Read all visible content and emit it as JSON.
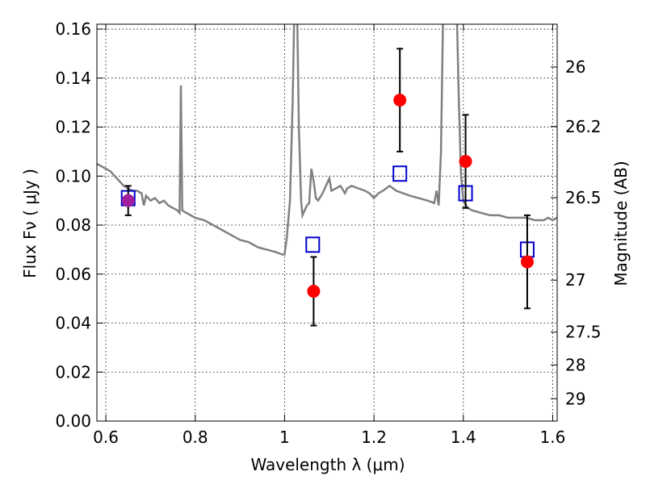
{
  "chart_data": {
    "type": "scatter",
    "xlabel": "Wavelength  λ (μm)",
    "ylabel": "Flux  Fν  ( μJy )",
    "ylabel_right": "Magnitude (AB)",
    "xlim": [
      0.58,
      1.61
    ],
    "ylim": [
      0,
      0.162
    ],
    "grid": true,
    "x_ticks": [
      "0.6",
      "0.8",
      "1",
      "1.2",
      "1.4",
      "1.6"
    ],
    "y_ticks": [
      "0.00",
      "0.02",
      "0.04",
      "0.06",
      "0.08",
      "0.10",
      "0.12",
      "0.14",
      "0.16"
    ],
    "mag_ticks": [
      {
        "label": "26",
        "mag": 26.0
      },
      {
        "label": "26.2",
        "mag": 26.2
      },
      {
        "label": "26.5",
        "mag": 26.5
      },
      {
        "label": "27",
        "mag": 27.0
      },
      {
        "label": "27.5",
        "mag": 27.5
      },
      {
        "label": "28",
        "mag": 28.0
      },
      {
        "label": "29",
        "mag": 29.0
      }
    ],
    "colors": {
      "observed": "#ff0000",
      "model_photometry": "#0000cc",
      "spectrum": "#808080",
      "overlap": "#a020a0"
    },
    "series": [
      {
        "type": "scatter_errorbar",
        "marker": "circle",
        "points": [
          {
            "x": 0.65,
            "y": 0.09,
            "yerr": 0.006
          },
          {
            "x": 1.065,
            "y": 0.053,
            "yerr": 0.014
          },
          {
            "x": 1.258,
            "y": 0.131,
            "yerr": 0.021
          },
          {
            "x": 1.405,
            "y": 0.106,
            "yerr": 0.019
          },
          {
            "x": 1.543,
            "y": 0.065,
            "yerr": 0.019
          }
        ]
      },
      {
        "type": "scatter",
        "marker": "open-square",
        "points": [
          {
            "x": 0.65,
            "y": 0.091
          },
          {
            "x": 1.063,
            "y": 0.072
          },
          {
            "x": 1.258,
            "y": 0.101
          },
          {
            "x": 1.405,
            "y": 0.093
          },
          {
            "x": 1.543,
            "y": 0.07
          }
        ]
      },
      {
        "type": "line",
        "points": [
          [
            0.58,
            0.105
          ],
          [
            0.59,
            0.104
          ],
          [
            0.6,
            0.103
          ],
          [
            0.61,
            0.102
          ],
          [
            0.62,
            0.1
          ],
          [
            0.63,
            0.098
          ],
          [
            0.64,
            0.096
          ],
          [
            0.65,
            0.095
          ],
          [
            0.66,
            0.094
          ],
          [
            0.67,
            0.094
          ],
          [
            0.68,
            0.093
          ],
          [
            0.685,
            0.088
          ],
          [
            0.69,
            0.092
          ],
          [
            0.7,
            0.09
          ],
          [
            0.71,
            0.091
          ],
          [
            0.72,
            0.089
          ],
          [
            0.73,
            0.09
          ],
          [
            0.74,
            0.088
          ],
          [
            0.75,
            0.087
          ],
          [
            0.76,
            0.086
          ],
          [
            0.765,
            0.085
          ],
          [
            0.768,
            0.137
          ],
          [
            0.771,
            0.086
          ],
          [
            0.78,
            0.085
          ],
          [
            0.79,
            0.084
          ],
          [
            0.8,
            0.083
          ],
          [
            0.82,
            0.082
          ],
          [
            0.84,
            0.08
          ],
          [
            0.86,
            0.078
          ],
          [
            0.88,
            0.076
          ],
          [
            0.9,
            0.074
          ],
          [
            0.92,
            0.073
          ],
          [
            0.94,
            0.071
          ],
          [
            0.96,
            0.07
          ],
          [
            0.98,
            0.069
          ],
          [
            0.995,
            0.068
          ],
          [
            1.0,
            0.068
          ],
          [
            1.005,
            0.075
          ],
          [
            1.012,
            0.09
          ],
          [
            1.018,
            0.13
          ],
          [
            1.022,
            0.17
          ],
          [
            1.028,
            0.17
          ],
          [
            1.032,
            0.12
          ],
          [
            1.037,
            0.09
          ],
          [
            1.04,
            0.084
          ],
          [
            1.05,
            0.088
          ],
          [
            1.055,
            0.089
          ],
          [
            1.06,
            0.103
          ],
          [
            1.065,
            0.098
          ],
          [
            1.07,
            0.091
          ],
          [
            1.075,
            0.09
          ],
          [
            1.085,
            0.093
          ],
          [
            1.095,
            0.097
          ],
          [
            1.1,
            0.099
          ],
          [
            1.105,
            0.094
          ],
          [
            1.115,
            0.095
          ],
          [
            1.125,
            0.096
          ],
          [
            1.135,
            0.093
          ],
          [
            1.14,
            0.095
          ],
          [
            1.15,
            0.096
          ],
          [
            1.165,
            0.095
          ],
          [
            1.18,
            0.094
          ],
          [
            1.19,
            0.093
          ],
          [
            1.2,
            0.091
          ],
          [
            1.21,
            0.093
          ],
          [
            1.22,
            0.094
          ],
          [
            1.235,
            0.096
          ],
          [
            1.25,
            0.094
          ],
          [
            1.265,
            0.093
          ],
          [
            1.28,
            0.092
          ],
          [
            1.3,
            0.091
          ],
          [
            1.32,
            0.09
          ],
          [
            1.335,
            0.089
          ],
          [
            1.34,
            0.094
          ],
          [
            1.345,
            0.088
          ],
          [
            1.35,
            0.11
          ],
          [
            1.355,
            0.17
          ],
          [
            1.385,
            0.17
          ],
          [
            1.39,
            0.13
          ],
          [
            1.395,
            0.1
          ],
          [
            1.4,
            0.09
          ],
          [
            1.41,
            0.087
          ],
          [
            1.42,
            0.086
          ],
          [
            1.44,
            0.085
          ],
          [
            1.46,
            0.084
          ],
          [
            1.48,
            0.084
          ],
          [
            1.5,
            0.083
          ],
          [
            1.52,
            0.083
          ],
          [
            1.54,
            0.083
          ],
          [
            1.56,
            0.082
          ],
          [
            1.58,
            0.082
          ],
          [
            1.59,
            0.083
          ],
          [
            1.6,
            0.082
          ],
          [
            1.61,
            0.083
          ]
        ]
      }
    ]
  }
}
